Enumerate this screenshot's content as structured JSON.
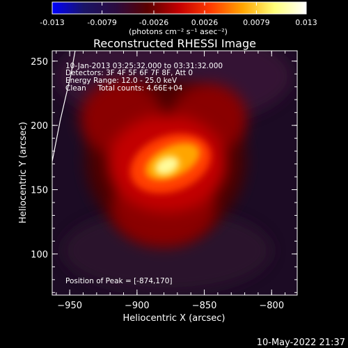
{
  "colorbar": {
    "tick_labels": [
      "-0.013",
      "-0.0079",
      "-0.0026",
      "0.0026",
      "0.0079",
      "0.013"
    ],
    "range": [
      -0.013,
      0.013
    ],
    "unit_label": "(photons cm⁻² s⁻¹ asec⁻²)",
    "stops": [
      "#0000ff",
      "#1a1466",
      "#2b0b3f",
      "#5a0000",
      "#c40000",
      "#ff3c00",
      "#ffa500",
      "#ffff7a",
      "#ffffff"
    ]
  },
  "chart_data": {
    "type": "heatmap",
    "title": "Reconstructed RHESSI Image",
    "xlabel": "Heliocentric X (arcsec)",
    "ylabel": "Heliocentric Y (arcsec)",
    "xlim": [
      -963,
      -781
    ],
    "ylim": [
      68,
      258
    ],
    "x_ticks": [
      -950,
      -900,
      -850,
      -800
    ],
    "y_ticks": [
      100,
      150,
      200,
      250
    ],
    "x_tick_labels": [
      "−950",
      "−900",
      "−850",
      "−800"
    ],
    "y_tick_labels": [
      "100",
      "150",
      "200",
      "250"
    ],
    "annotations": [
      "10-Jan-2013 03:25:32.000 to 03:31:32.000",
      "Detectors: 3F 4F 5F 6F 7F 8F, Att 0",
      "Energy Range: 12.0 - 25.0 keV",
      "Clean     Total counts: 4.66E+04"
    ],
    "peak_label": "Position of Peak = [-874,170]",
    "peak": [
      -874,
      170
    ],
    "limb_curve": [
      [
        -946,
        258
      ],
      [
        -949,
        240
      ],
      [
        -953,
        222
      ],
      [
        -957,
        204
      ],
      [
        -960,
        188
      ],
      [
        -963,
        172
      ]
    ]
  },
  "timestamp": "10-May-2022 21:37"
}
